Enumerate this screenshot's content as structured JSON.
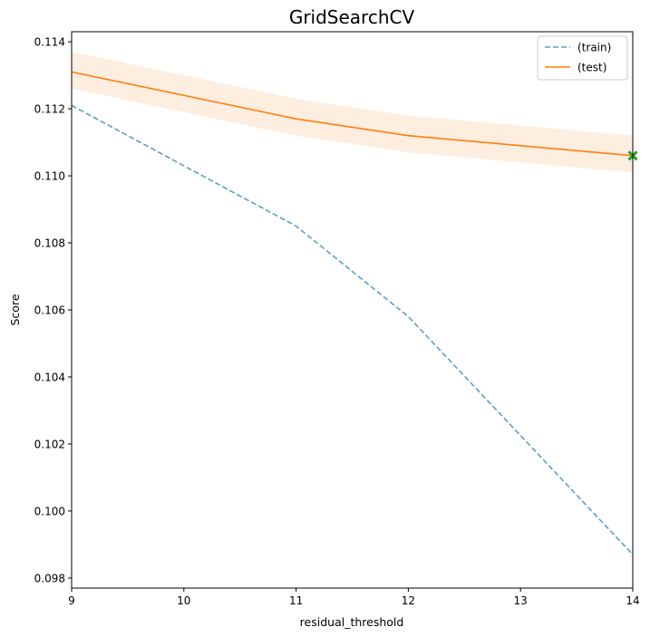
{
  "chart_data": {
    "type": "line",
    "title": "GridSearchCV",
    "xlabel": "residual_threshold",
    "ylabel": "Score",
    "xlim": [
      9,
      14
    ],
    "ylim": [
      0.0977,
      0.1143
    ],
    "x_ticks": [
      9,
      10,
      11,
      12,
      13,
      14
    ],
    "y_ticks": [
      0.098,
      0.1,
      0.102,
      0.104,
      0.106,
      0.108,
      0.11,
      0.112,
      0.114
    ],
    "grid": false,
    "legend_position": "top-right",
    "x": [
      9,
      11,
      12,
      14
    ],
    "series": [
      {
        "name": "(train)",
        "values": [
          0.1121,
          0.1085,
          0.1058,
          0.0987
        ],
        "style": "dashed",
        "color": "#5b9ec9"
      },
      {
        "name": "(test)",
        "values": [
          0.1131,
          0.1117,
          0.1112,
          0.1106
        ],
        "band_lower": [
          0.1126,
          0.1112,
          0.1107,
          0.1101
        ],
        "band_upper": [
          0.1137,
          0.1123,
          0.1118,
          0.1112
        ],
        "style": "solid",
        "color": "#ff7f0e",
        "band_color": "#fdeee0"
      }
    ],
    "best_marker": {
      "x": 14,
      "y": 0.1106,
      "color": "#2ca02c"
    }
  }
}
